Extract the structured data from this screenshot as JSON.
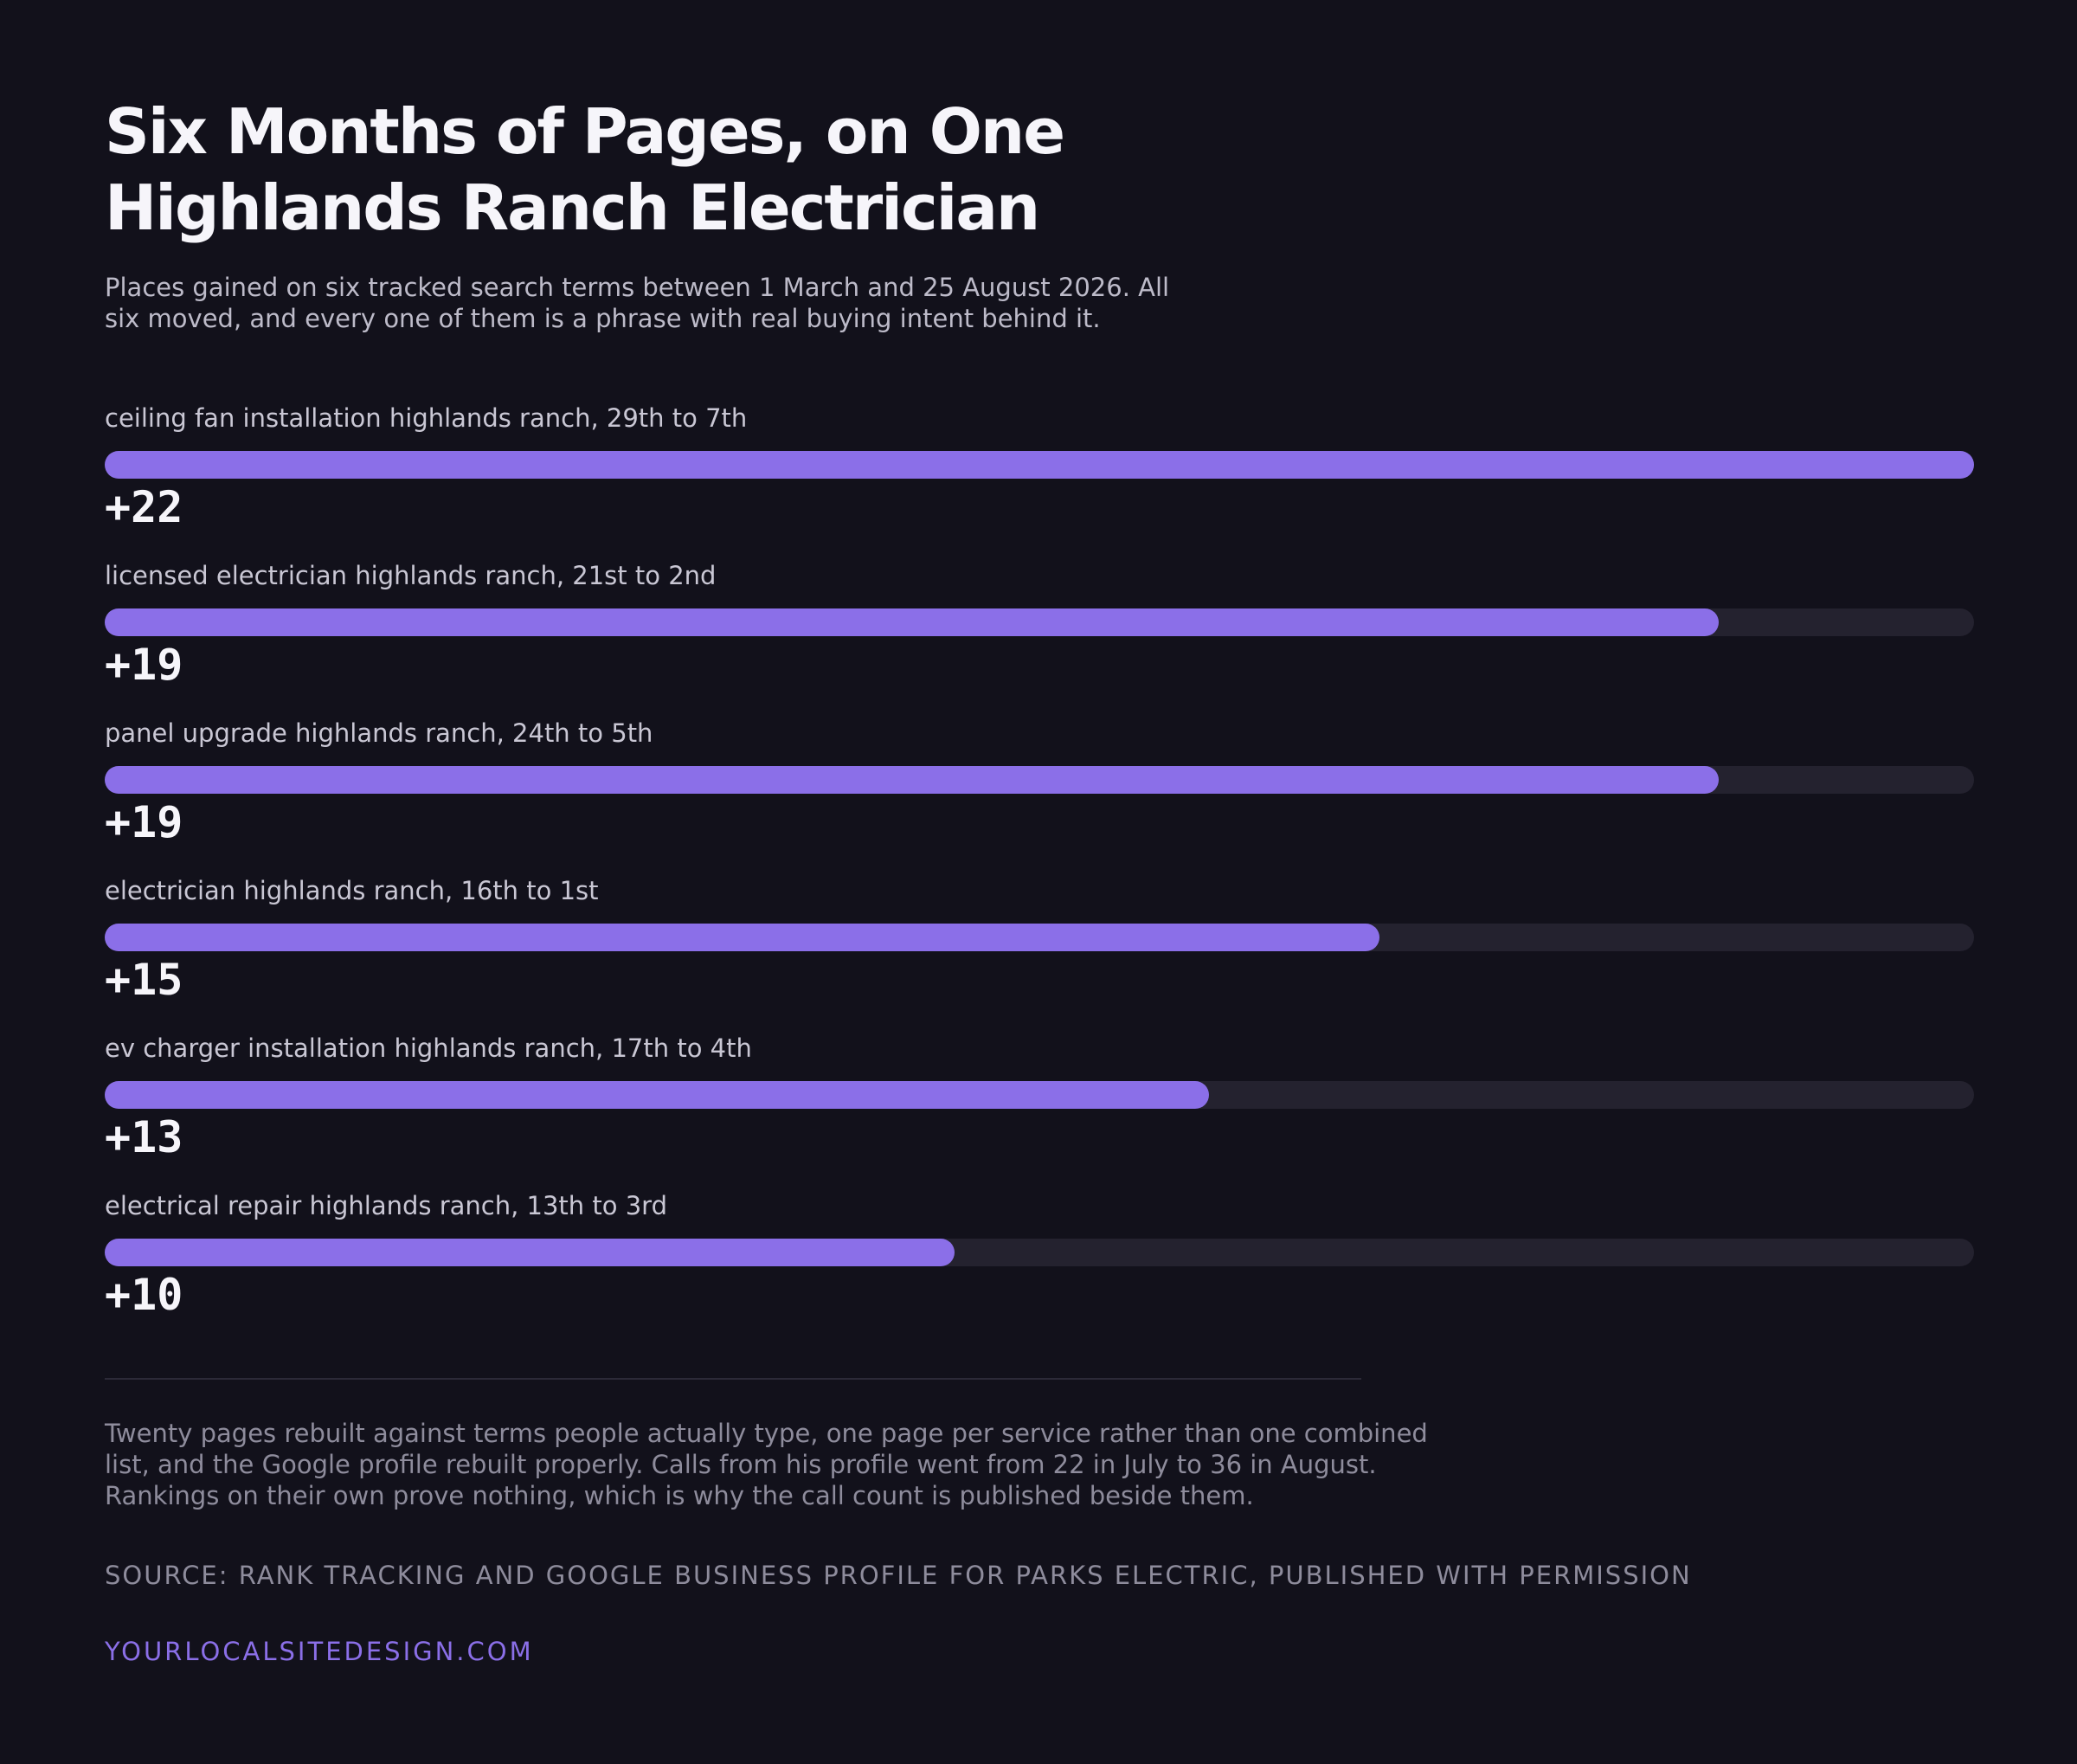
{
  "title": "Six Months of Pages, on One Highlands Ranch Electrician",
  "subtitle": "Places gained on six tracked search terms between 1 March and 25 August 2026. All six moved, and every one of them is a phrase with real buying intent behind it.",
  "chart_data": {
    "type": "bar",
    "orientation": "horizontal",
    "categories": [
      "ceiling fan installation highlands ranch, 29th to 7th",
      "licensed electrician highlands ranch, 21st to 2nd",
      "panel upgrade highlands ranch, 24th to 5th",
      "electrician highlands ranch, 16th to 1st",
      "ev charger installation highlands ranch, 17th to 4th",
      "electrical repair highlands ranch, 13th to 3rd"
    ],
    "values": [
      22,
      19,
      19,
      15,
      13,
      10
    ],
    "value_labels": [
      "+22",
      "+19",
      "+19",
      "+15",
      "+13",
      "+10"
    ],
    "xlim": [
      0,
      22
    ],
    "grid": false,
    "legend": "none",
    "bar_color": "#8b6fe8",
    "track_color": "#24222f"
  },
  "footnote": "Twenty pages rebuilt against terms people actually type, one page per service rather than one combined list, and the Google profile rebuilt properly. Calls from his profile went from 22 in July to 36 in August. Rankings on their own prove nothing, which is why the call count is published beside them.",
  "source": "SOURCE: RANK TRACKING AND GOOGLE BUSINESS PROFILE FOR PARKS ELECTRIC, PUBLISHED WITH PERMISSION",
  "brand": "YOURLOCALSITEDESIGN.COM",
  "colors": {
    "background": "#12111b",
    "accent": "#8b6fe8",
    "text": "#f6f5fa",
    "muted": "#8e8c9c"
  }
}
